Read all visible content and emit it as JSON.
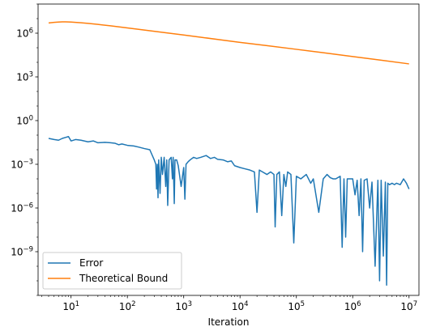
{
  "chart_data": {
    "type": "line",
    "title": "",
    "xlabel": "Iteration",
    "ylabel": "",
    "xscale": "log",
    "yscale": "log",
    "xlim": [
      2.6,
      15000000
    ],
    "ylim": [
      1e-12,
      100000000.0
    ],
    "grid": false,
    "legend_position": "lower-left",
    "x_ticks": [
      {
        "value": 10,
        "label": "10",
        "exp": "1"
      },
      {
        "value": 100,
        "label": "10",
        "exp": "2"
      },
      {
        "value": 1000,
        "label": "10",
        "exp": "3"
      },
      {
        "value": 10000,
        "label": "10",
        "exp": "4"
      },
      {
        "value": 100000,
        "label": "10",
        "exp": "5"
      },
      {
        "value": 1000000,
        "label": "10",
        "exp": "6"
      },
      {
        "value": 10000000,
        "label": "10",
        "exp": "7"
      }
    ],
    "y_ticks": [
      {
        "value": 1000000.0,
        "label": "10",
        "exp": "6"
      },
      {
        "value": 1000.0,
        "label": "10",
        "exp": "3"
      },
      {
        "value": 1,
        "label": "10",
        "exp": "0"
      },
      {
        "value": 0.001,
        "label": "10",
        "exp": "−3"
      },
      {
        "value": 1e-06,
        "label": "10",
        "exp": "−6"
      },
      {
        "value": 1e-09,
        "label": "10",
        "exp": "−9"
      }
    ],
    "series": [
      {
        "name": "Error",
        "color": "#1f77b4",
        "x": [
          4,
          5,
          6,
          7,
          8,
          9,
          10,
          12,
          15,
          20,
          25,
          30,
          40,
          50,
          60,
          70,
          80,
          100,
          130,
          160,
          200,
          250,
          300,
          320,
          330,
          340,
          350,
          360,
          380,
          400,
          420,
          450,
          480,
          500,
          520,
          550,
          600,
          630,
          650,
          680,
          700,
          750,
          800,
          900,
          1000,
          1050,
          1100,
          1200,
          1300,
          1500,
          1700,
          2000,
          2500,
          3000,
          3500,
          4000,
          5000,
          6000,
          7000,
          8000,
          10000,
          12000,
          15000,
          18000,
          20000,
          22000,
          25000,
          30000,
          35000,
          40000,
          42000,
          45000,
          50000,
          55000,
          60000,
          65000,
          70000,
          80000,
          90000,
          100000,
          120000,
          150000,
          180000,
          200000,
          250000,
          300000,
          350000,
          400000,
          450000,
          500000,
          600000,
          650000,
          700000,
          750000,
          800000,
          900000,
          1000000,
          1100000,
          1200000,
          1300000,
          1400000,
          1500000,
          1600000,
          1800000,
          2000000,
          2200000,
          2500000,
          2800000,
          3000000,
          3200000,
          3500000,
          3800000,
          4000000,
          4200000,
          4500000,
          5000000,
          5500000,
          6000000,
          7000000,
          8000000,
          9000000,
          10000000
        ],
        "y": [
          0.06,
          0.05,
          0.045,
          0.06,
          0.07,
          0.08,
          0.04,
          0.05,
          0.045,
          0.035,
          0.04,
          0.03,
          0.032,
          0.03,
          0.028,
          0.022,
          0.025,
          0.02,
          0.018,
          0.015,
          0.012,
          0.01,
          0.002,
          0.001,
          2e-05,
          0.001,
          5e-06,
          0.002,
          1e-05,
          0.003,
          0.0002,
          0.003,
          3e-05,
          0.002,
          1.5e-06,
          0.002,
          0.003,
          0.0001,
          0.003,
          2e-06,
          0.002,
          0.002,
          0.0008,
          3e-05,
          0.0006,
          4e-06,
          0.001,
          0.0015,
          0.002,
          0.003,
          0.0025,
          0.003,
          0.004,
          0.0025,
          0.003,
          0.0022,
          0.002,
          0.0015,
          0.0017,
          0.0008,
          0.0006,
          0.0005,
          0.0004,
          0.0003,
          5e-07,
          0.0004,
          0.0003,
          0.0002,
          0.0003,
          0.0002,
          5e-08,
          0.0002,
          0.0003,
          3e-07,
          0.0002,
          3e-05,
          0.0003,
          0.0002,
          4e-09,
          0.00015,
          0.0001,
          0.0002,
          5e-05,
          0.0001,
          5e-07,
          0.0001,
          0.0002,
          0.00012,
          0.0001,
          0.0001,
          0.00015,
          2e-09,
          0.0001,
          1e-08,
          0.0001,
          0.0001,
          0.0001,
          8e-06,
          8e-05,
          3e-07,
          0.0001,
          1e-09,
          8e-05,
          0.0001,
          1e-06,
          6e-05,
          1e-10,
          8e-05,
          1e-11,
          8e-05,
          5e-10,
          6e-05,
          5e-12,
          5e-05,
          4e-05,
          5e-05,
          4e-05,
          5e-05,
          4e-05,
          0.0001,
          5e-05,
          2e-05
        ]
      },
      {
        "name": "Theoretical Bound",
        "color": "#ff7f0e",
        "x": [
          4,
          5,
          6,
          7,
          8,
          10,
          15,
          20,
          30,
          50,
          100,
          200,
          500,
          1000,
          2000,
          5000,
          10000,
          30000,
          100000,
          300000,
          1000000,
          3000000,
          10000000
        ],
        "y": [
          5000000,
          5500000,
          5800000,
          6000000,
          6000000,
          5800000,
          5200000,
          4700000,
          4000000,
          3200000,
          2300000,
          1650000,
          1050000,
          750000,
          530000,
          330000,
          235000,
          140000,
          78000,
          46000,
          25000,
          14500,
          7800
        ]
      }
    ]
  }
}
